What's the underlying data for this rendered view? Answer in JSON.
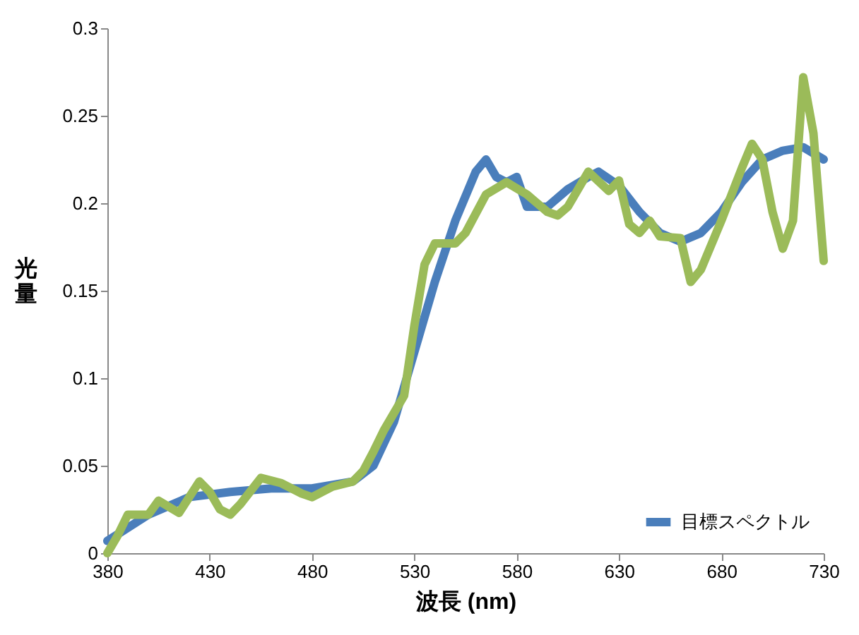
{
  "chart_data": {
    "type": "line",
    "xlabel": "波長 (nm)",
    "ylabel": "光量",
    "xlim": [
      380,
      730
    ],
    "xticks": [
      380,
      430,
      480,
      530,
      580,
      630,
      680,
      730
    ],
    "ylim": [
      0,
      0.3
    ],
    "yticks": [
      0,
      0.05,
      0.1,
      0.15,
      0.2,
      0.25,
      0.3
    ],
    "grid": false,
    "legend": "bottom right",
    "line_style": "solid",
    "marker": "none",
    "series": [
      {
        "name": "目標スペクトル",
        "color": "#4a7ebb",
        "x": [
          380,
          400,
          420,
          440,
          460,
          480,
          500,
          510,
          520,
          530,
          540,
          550,
          560,
          565,
          570,
          575,
          580,
          585,
          595,
          605,
          615,
          620,
          630,
          640,
          650,
          660,
          670,
          680,
          690,
          700,
          710,
          720,
          730
        ],
        "values": [
          0.007,
          0.022,
          0.032,
          0.035,
          0.037,
          0.037,
          0.041,
          0.05,
          0.075,
          0.115,
          0.155,
          0.19,
          0.218,
          0.225,
          0.215,
          0.212,
          0.215,
          0.198,
          0.198,
          0.208,
          0.215,
          0.218,
          0.21,
          0.195,
          0.183,
          0.178,
          0.183,
          0.195,
          0.212,
          0.225,
          0.23,
          0.232,
          0.225
        ]
      },
      {
        "color": "#9bbb59",
        "x": [
          380,
          385,
          390,
          400,
          405,
          415,
          425,
          430,
          435,
          440,
          445,
          455,
          465,
          475,
          480,
          490,
          500,
          505,
          510,
          515,
          525,
          530,
          535,
          540,
          550,
          555,
          565,
          575,
          585,
          595,
          600,
          605,
          615,
          625,
          630,
          635,
          640,
          645,
          650,
          660,
          665,
          670,
          680,
          690,
          695,
          700,
          705,
          710,
          715,
          720,
          725,
          730
        ],
        "values": [
          0.0,
          0.01,
          0.022,
          0.022,
          0.03,
          0.023,
          0.041,
          0.035,
          0.025,
          0.022,
          0.028,
          0.043,
          0.04,
          0.034,
          0.032,
          0.038,
          0.041,
          0.047,
          0.058,
          0.07,
          0.09,
          0.13,
          0.165,
          0.177,
          0.177,
          0.183,
          0.205,
          0.212,
          0.205,
          0.195,
          0.193,
          0.198,
          0.218,
          0.207,
          0.213,
          0.188,
          0.183,
          0.19,
          0.181,
          0.18,
          0.155,
          0.162,
          0.19,
          0.22,
          0.234,
          0.225,
          0.195,
          0.174,
          0.19,
          0.272,
          0.24,
          0.167
        ]
      }
    ]
  }
}
